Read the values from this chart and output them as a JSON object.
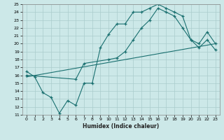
{
  "title": "",
  "xlabel": "Humidex (Indice chaleur)",
  "xlim": [
    -0.5,
    23.5
  ],
  "ylim": [
    11,
    25
  ],
  "xticks": [
    0,
    1,
    2,
    3,
    4,
    5,
    6,
    7,
    8,
    9,
    10,
    11,
    12,
    13,
    14,
    15,
    16,
    17,
    18,
    19,
    20,
    21,
    22,
    23
  ],
  "yticks": [
    11,
    12,
    13,
    14,
    15,
    16,
    17,
    18,
    19,
    20,
    21,
    22,
    23,
    24,
    25
  ],
  "background_color": "#cce8e8",
  "grid_color": "#aacccc",
  "line_color": "#1a7070",
  "line1_x": [
    0,
    1,
    2,
    3,
    4,
    5,
    6,
    7,
    8,
    9,
    10,
    11,
    12,
    13,
    14,
    15,
    16,
    17,
    18,
    19,
    20,
    21,
    22,
    23
  ],
  "line1_y": [
    16.5,
    15.8,
    13.8,
    13.2,
    11.2,
    12.8,
    12.2,
    15.0,
    15.0,
    19.5,
    21.2,
    22.5,
    22.5,
    24.0,
    24.0,
    24.5,
    25.0,
    24.5,
    24.0,
    23.5,
    20.5,
    20.0,
    21.5,
    20.0
  ],
  "line2_x": [
    0,
    6,
    7,
    10,
    11,
    12,
    13,
    14,
    15,
    16,
    17,
    18,
    19,
    20,
    21,
    22,
    23
  ],
  "line2_y": [
    16.0,
    15.5,
    17.5,
    18.0,
    18.2,
    19.0,
    20.5,
    22.0,
    23.0,
    24.5,
    24.0,
    23.5,
    22.0,
    20.5,
    19.5,
    20.5,
    19.2
  ],
  "line3_x": [
    0,
    23
  ],
  "line3_y": [
    15.8,
    20.0
  ]
}
